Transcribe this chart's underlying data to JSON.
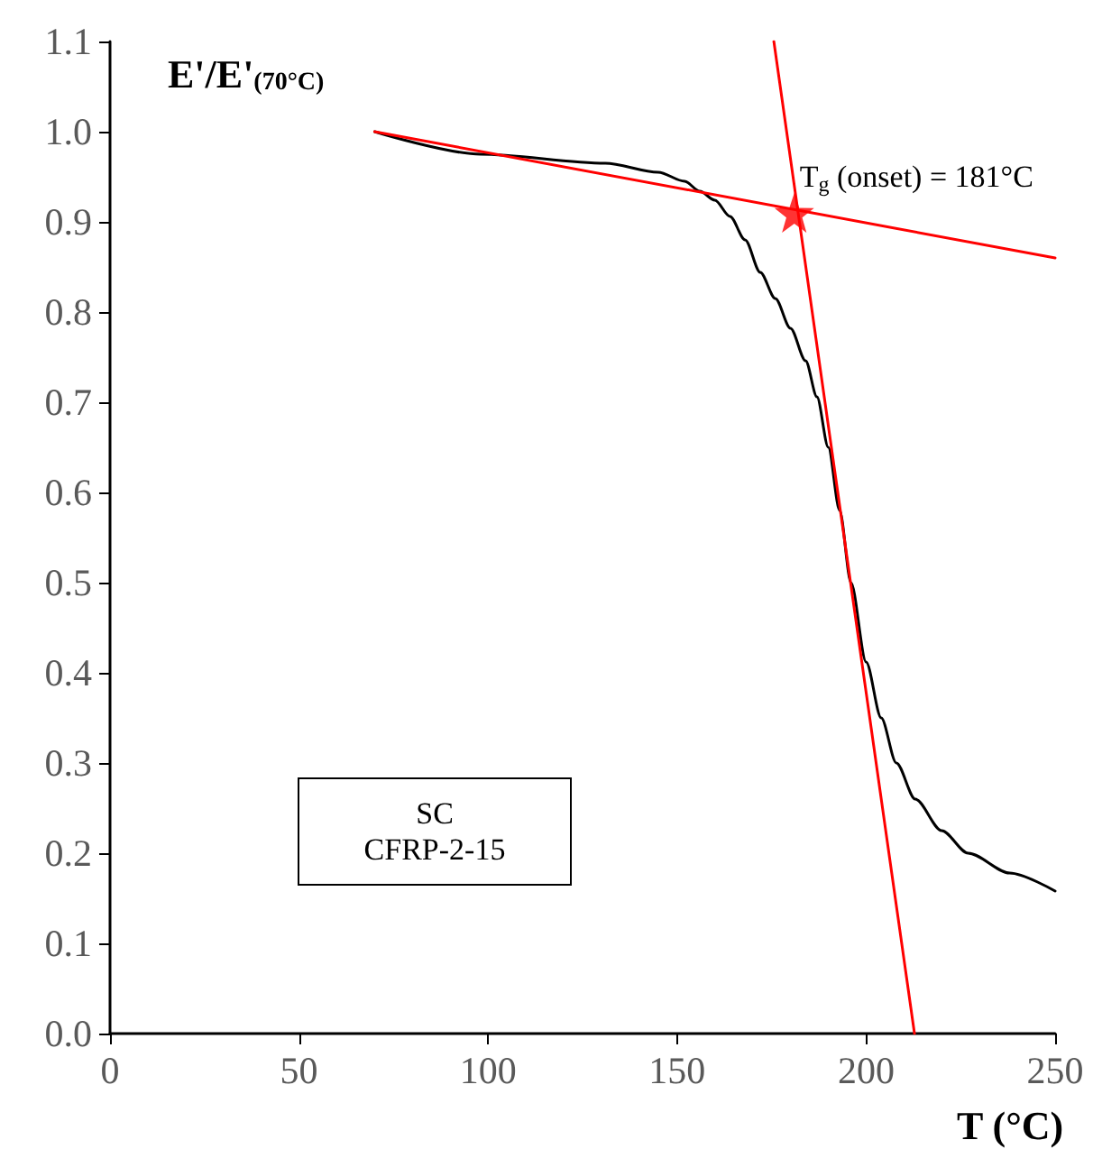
{
  "chart_data": {
    "type": "line",
    "xlabel": "T (°C)",
    "ylabel": "E'/E'$_{(70°C)}$",
    "xlim": [
      0,
      250
    ],
    "xticks": [
      0,
      50,
      100,
      150,
      200,
      250
    ],
    "ylim": [
      0,
      1.1
    ],
    "yticks": [
      {
        "value": 0,
        "label": "0.0"
      },
      {
        "value": 0.1,
        "label": "0.1"
      },
      {
        "value": 0.2,
        "label": "0.2"
      },
      {
        "value": 0.3,
        "label": "0.3"
      },
      {
        "value": 0.4,
        "label": "0.4"
      },
      {
        "value": 0.5,
        "label": "0.5"
      },
      {
        "value": 0.6,
        "label": "0.6"
      },
      {
        "value": 0.7,
        "label": "0.7"
      },
      {
        "value": 0.8,
        "label": "0.8"
      },
      {
        "value": 0.9,
        "label": "0.9"
      },
      {
        "value": 1.0,
        "label": "1.0"
      },
      {
        "value": 1.1,
        "label": "1.1"
      }
    ],
    "grid": false,
    "series": [
      {
        "color": "#000000",
        "marker": "none",
        "x": [
          70,
          98,
          131,
          145,
          152,
          156,
          160,
          164,
          168,
          172,
          176,
          180,
          184,
          187,
          190,
          193,
          196,
          200,
          204,
          208,
          213,
          220,
          227,
          238,
          250
        ],
        "values": [
          1.0,
          0.975,
          0.965,
          0.955,
          0.945,
          0.934,
          0.924,
          0.906,
          0.88,
          0.844,
          0.815,
          0.782,
          0.746,
          0.706,
          0.65,
          0.58,
          0.5,
          0.412,
          0.35,
          0.3,
          0.26,
          0.225,
          0.2,
          0.178,
          0.158
        ]
      },
      {
        "color": "#ff0000",
        "marker": "none",
        "x": [
          70,
          250
        ],
        "values": [
          1.0,
          0.86
        ]
      },
      {
        "color": "#ff0000",
        "marker": "none",
        "x": [
          175.6,
          212.8
        ],
        "values": [
          1.1,
          0
        ]
      },
      {
        "type": "scatter",
        "color": "#ff0000",
        "marker": "star",
        "x": [
          181
        ],
        "values": [
          0.91
        ]
      }
    ],
    "annotations": [
      {
        "text": "T$_{g}$ (onset) = 181°C",
        "x": 181,
        "y": 0.91
      },
      "SC\nCFRP-2-15"
    ]
  }
}
